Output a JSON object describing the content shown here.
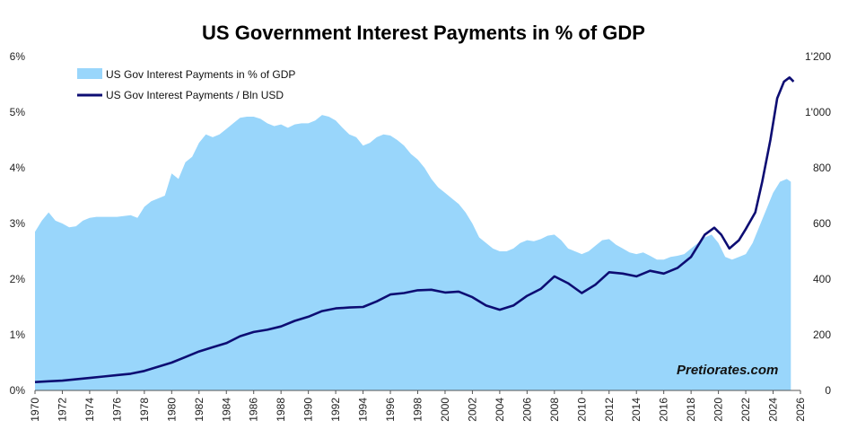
{
  "chart_data": {
    "type": "area",
    "title": "US Government Interest Payments in % of GDP",
    "xlabel": "",
    "ylabel_left": "",
    "ylabel_right": "",
    "xlim": [
      1970,
      2026
    ],
    "ylim_left": [
      0,
      6
    ],
    "ylim_right": [
      0,
      1200
    ],
    "x_ticks": [
      "1970",
      "1972",
      "1974",
      "1976",
      "1978",
      "1980",
      "1982",
      "1984",
      "1986",
      "1988",
      "1990",
      "1992",
      "1994",
      "1996",
      "1998",
      "2000",
      "2002",
      "2004",
      "2006",
      "2008",
      "2010",
      "2012",
      "2014",
      "2016",
      "2018",
      "2020",
      "2022",
      "2024",
      "2026"
    ],
    "y_left_ticks": [
      "0%",
      "1%",
      "2%",
      "3%",
      "4%",
      "5%",
      "6%"
    ],
    "y_right_ticks": [
      "0",
      "200",
      "400",
      "600",
      "800",
      "1'000",
      "1'200"
    ],
    "legend_position": "top-left",
    "grid": false,
    "watermark": "Pretiorates.com",
    "series": [
      {
        "name": "US Gov Interest Payments in % of GDP",
        "type": "area",
        "axis": "left",
        "color": "#99d6fb",
        "points": [
          [
            1970,
            2.85
          ],
          [
            1970.5,
            3.05
          ],
          [
            1971,
            3.2
          ],
          [
            1971.5,
            3.05
          ],
          [
            1972,
            3.0
          ],
          [
            1972.5,
            2.93
          ],
          [
            1973,
            2.95
          ],
          [
            1973.5,
            3.05
          ],
          [
            1974,
            3.1
          ],
          [
            1974.5,
            3.12
          ],
          [
            1975,
            3.12
          ],
          [
            1976,
            3.12
          ],
          [
            1977,
            3.15
          ],
          [
            1977.5,
            3.1
          ],
          [
            1978,
            3.3
          ],
          [
            1978.5,
            3.4
          ],
          [
            1979,
            3.45
          ],
          [
            1979.5,
            3.5
          ],
          [
            1980,
            3.9
          ],
          [
            1980.5,
            3.8
          ],
          [
            1981,
            4.1
          ],
          [
            1981.5,
            4.2
          ],
          [
            1982,
            4.45
          ],
          [
            1982.5,
            4.6
          ],
          [
            1983,
            4.55
          ],
          [
            1983.5,
            4.6
          ],
          [
            1984,
            4.7
          ],
          [
            1984.5,
            4.8
          ],
          [
            1985,
            4.9
          ],
          [
            1985.5,
            4.92
          ],
          [
            1986,
            4.92
          ],
          [
            1986.5,
            4.88
          ],
          [
            1987,
            4.8
          ],
          [
            1987.5,
            4.75
          ],
          [
            1988,
            4.78
          ],
          [
            1988.5,
            4.72
          ],
          [
            1989,
            4.78
          ],
          [
            1989.5,
            4.8
          ],
          [
            1990,
            4.8
          ],
          [
            1990.5,
            4.85
          ],
          [
            1991,
            4.95
          ],
          [
            1991.5,
            4.92
          ],
          [
            1992,
            4.85
          ],
          [
            1992.5,
            4.72
          ],
          [
            1993,
            4.6
          ],
          [
            1993.5,
            4.55
          ],
          [
            1994,
            4.4
          ],
          [
            1994.5,
            4.45
          ],
          [
            1995,
            4.55
          ],
          [
            1995.5,
            4.6
          ],
          [
            1996,
            4.58
          ],
          [
            1996.5,
            4.5
          ],
          [
            1997,
            4.4
          ],
          [
            1997.5,
            4.25
          ],
          [
            1998,
            4.15
          ],
          [
            1998.5,
            4.0
          ],
          [
            1999,
            3.8
          ],
          [
            1999.5,
            3.65
          ],
          [
            2000,
            3.55
          ],
          [
            2000.5,
            3.45
          ],
          [
            2001,
            3.35
          ],
          [
            2001.5,
            3.2
          ],
          [
            2002,
            3.0
          ],
          [
            2002.5,
            2.75
          ],
          [
            2003,
            2.65
          ],
          [
            2003.5,
            2.55
          ],
          [
            2004,
            2.5
          ],
          [
            2004.5,
            2.5
          ],
          [
            2005,
            2.55
          ],
          [
            2005.5,
            2.65
          ],
          [
            2006,
            2.7
          ],
          [
            2006.5,
            2.68
          ],
          [
            2007,
            2.72
          ],
          [
            2007.5,
            2.78
          ],
          [
            2008,
            2.8
          ],
          [
            2008.5,
            2.7
          ],
          [
            2009,
            2.55
          ],
          [
            2009.5,
            2.5
          ],
          [
            2010,
            2.45
          ],
          [
            2010.5,
            2.5
          ],
          [
            2011,
            2.6
          ],
          [
            2011.5,
            2.7
          ],
          [
            2012,
            2.72
          ],
          [
            2012.5,
            2.62
          ],
          [
            2013,
            2.55
          ],
          [
            2013.5,
            2.48
          ],
          [
            2014,
            2.45
          ],
          [
            2014.5,
            2.48
          ],
          [
            2015,
            2.42
          ],
          [
            2015.5,
            2.35
          ],
          [
            2016,
            2.35
          ],
          [
            2016.5,
            2.4
          ],
          [
            2017,
            2.42
          ],
          [
            2017.5,
            2.45
          ],
          [
            2018,
            2.55
          ],
          [
            2018.5,
            2.65
          ],
          [
            2019,
            2.75
          ],
          [
            2019.5,
            2.8
          ],
          [
            2020,
            2.65
          ],
          [
            2020.5,
            2.4
          ],
          [
            2021,
            2.35
          ],
          [
            2021.5,
            2.4
          ],
          [
            2022,
            2.45
          ],
          [
            2022.5,
            2.65
          ],
          [
            2023,
            2.95
          ],
          [
            2023.5,
            3.25
          ],
          [
            2024,
            3.55
          ],
          [
            2024.5,
            3.75
          ],
          [
            2025,
            3.8
          ],
          [
            2025.3,
            3.75
          ]
        ]
      },
      {
        "name": "US Gov Interest Payments / Bln USD",
        "type": "line",
        "axis": "right",
        "color": "#0d0d73",
        "points": [
          [
            1970,
            30
          ],
          [
            1971,
            33
          ],
          [
            1972,
            35
          ],
          [
            1973,
            40
          ],
          [
            1974,
            45
          ],
          [
            1975,
            50
          ],
          [
            1976,
            55
          ],
          [
            1977,
            60
          ],
          [
            1978,
            70
          ],
          [
            1979,
            85
          ],
          [
            1980,
            100
          ],
          [
            1981,
            120
          ],
          [
            1982,
            140
          ],
          [
            1983,
            155
          ],
          [
            1984,
            170
          ],
          [
            1985,
            195
          ],
          [
            1986,
            210
          ],
          [
            1987,
            218
          ],
          [
            1988,
            230
          ],
          [
            1989,
            250
          ],
          [
            1990,
            265
          ],
          [
            1991,
            285
          ],
          [
            1992,
            295
          ],
          [
            1993,
            298
          ],
          [
            1994,
            300
          ],
          [
            1995,
            320
          ],
          [
            1996,
            345
          ],
          [
            1997,
            350
          ],
          [
            1998,
            360
          ],
          [
            1999,
            362
          ],
          [
            2000,
            352
          ],
          [
            2001,
            355
          ],
          [
            2002,
            335
          ],
          [
            2003,
            305
          ],
          [
            2004,
            290
          ],
          [
            2005,
            305
          ],
          [
            2006,
            340
          ],
          [
            2007,
            365
          ],
          [
            2008,
            410
          ],
          [
            2009,
            385
          ],
          [
            2010,
            350
          ],
          [
            2011,
            380
          ],
          [
            2012,
            425
          ],
          [
            2013,
            420
          ],
          [
            2014,
            410
          ],
          [
            2015,
            430
          ],
          [
            2016,
            420
          ],
          [
            2017,
            440
          ],
          [
            2018,
            480
          ],
          [
            2019,
            560
          ],
          [
            2019.7,
            585
          ],
          [
            2020.2,
            560
          ],
          [
            2020.8,
            510
          ],
          [
            2021.5,
            540
          ],
          [
            2022,
            580
          ],
          [
            2022.7,
            640
          ],
          [
            2023.2,
            750
          ],
          [
            2023.8,
            900
          ],
          [
            2024.3,
            1050
          ],
          [
            2024.8,
            1110
          ],
          [
            2025.2,
            1125
          ],
          [
            2025.5,
            1110
          ]
        ]
      }
    ]
  }
}
